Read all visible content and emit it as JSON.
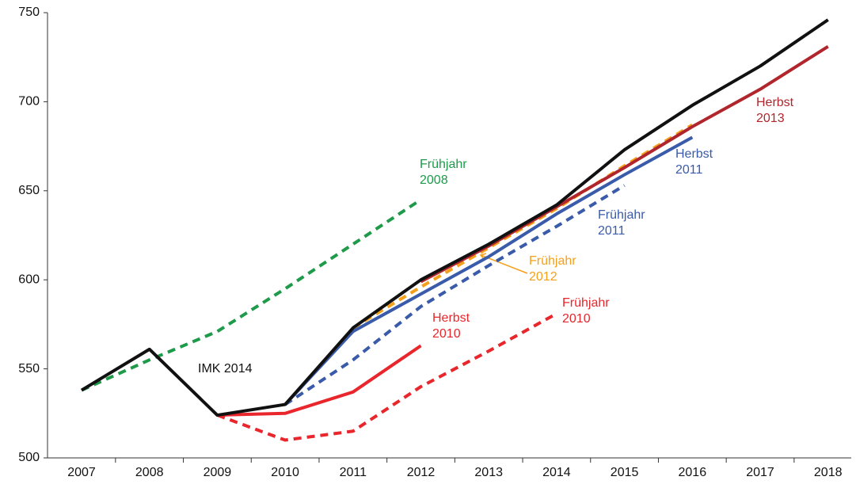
{
  "chart_data": {
    "type": "line",
    "categories": [
      "2007",
      "2008",
      "2009",
      "2010",
      "2011",
      "2012",
      "2013",
      "2014",
      "2015",
      "2016",
      "2017",
      "2018"
    ],
    "ylim": [
      500,
      750
    ],
    "yticks": [
      500,
      550,
      600,
      650,
      700,
      750
    ],
    "grid": false,
    "series": [
      {
        "name": "Frühjahr 2008",
        "color": "#1e9a4a",
        "dash": true,
        "values": [
          538,
          555,
          571,
          595,
          620,
          645,
          null,
          null,
          null,
          null,
          null,
          null
        ]
      },
      {
        "name": "Frühjahr 2010",
        "color": "#e8262b",
        "dash": true,
        "values": [
          null,
          null,
          524,
          510,
          515,
          540,
          560,
          581,
          null,
          null,
          null,
          null
        ]
      },
      {
        "name": "Herbst 2010",
        "color": "#e8262b",
        "dash": false,
        "values": [
          null,
          null,
          524,
          525,
          537,
          563,
          null,
          null,
          null,
          null,
          null,
          null
        ]
      },
      {
        "name": "Frühjahr 2011",
        "color": "#3a5ba9",
        "dash": true,
        "values": [
          null,
          null,
          null,
          530,
          555,
          585,
          608,
          630,
          653,
          null,
          null,
          null
        ]
      },
      {
        "name": "Herbst 2011",
        "color": "#3a5ba9",
        "dash": false,
        "values": [
          null,
          null,
          null,
          530,
          571,
          592,
          613,
          637,
          659,
          680,
          null,
          null
        ]
      },
      {
        "name": "Frühjahr 2012",
        "color": "#f5a01a",
        "dash": true,
        "values": [
          null,
          null,
          null,
          null,
          573,
          596,
          618,
          640,
          664,
          687,
          null,
          null
        ]
      },
      {
        "name": "Herbst 2013",
        "color": "#b0262c",
        "dash": false,
        "values": [
          null,
          null,
          null,
          null,
          null,
          599,
          619,
          641,
          663,
          686,
          707,
          731
        ]
      },
      {
        "name": "IMK 2014",
        "color": "#111111",
        "dash": false,
        "values": [
          538,
          561,
          524,
          530,
          573,
          600,
          620,
          642,
          673,
          698,
          720,
          746
        ]
      }
    ]
  }
}
